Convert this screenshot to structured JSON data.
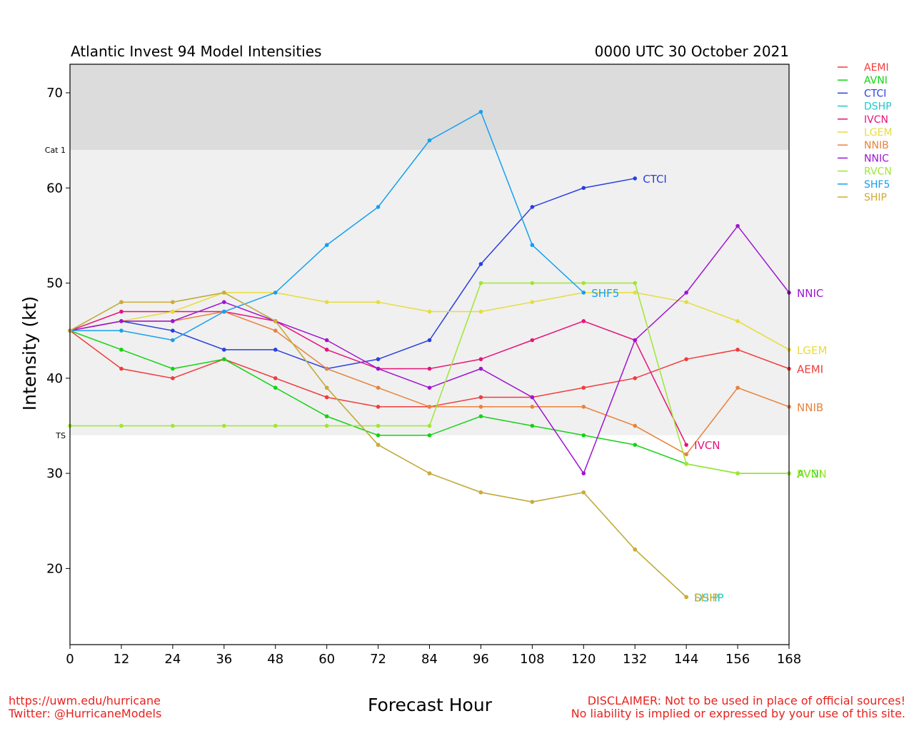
{
  "chart_data": {
    "type": "line",
    "title": "Atlantic Invest 94 Model Intensities",
    "date": "0000 UTC 30 October 2021",
    "xlabel": "Forecast Hour",
    "ylabel": "Intensity (kt)",
    "xlim": [
      0,
      168
    ],
    "ylim": [
      12,
      73
    ],
    "xticks": [
      0,
      12,
      24,
      36,
      48,
      60,
      72,
      84,
      96,
      108,
      120,
      132,
      144,
      156,
      168
    ],
    "yticks": [
      20,
      30,
      40,
      50,
      60,
      70
    ],
    "bands": [
      {
        "from": 64,
        "to": 73,
        "color": "#dcdcdc"
      },
      {
        "from": 34,
        "to": 64,
        "color": "#f0f0f0"
      }
    ],
    "thresholds": [
      {
        "value": 64,
        "label": "Cat 1"
      },
      {
        "value": 34,
        "label": "TS"
      }
    ],
    "legend_position": "right, outside",
    "series": [
      {
        "name": "AEMI",
        "color": "#f03c3c",
        "x": [
          0,
          12,
          24,
          36,
          48,
          60,
          72,
          84,
          96,
          108,
          120,
          132,
          144,
          156,
          168
        ],
        "y": [
          45,
          41,
          40,
          42,
          40,
          38,
          37,
          37,
          38,
          38,
          39,
          40,
          42,
          43,
          41
        ]
      },
      {
        "name": "AVNI",
        "color": "#14d214",
        "x": [
          0,
          12,
          24,
          36,
          48,
          60,
          72,
          84,
          96,
          108,
          120,
          132,
          144,
          156,
          168
        ],
        "y": [
          45,
          43,
          41,
          42,
          39,
          36,
          34,
          34,
          36,
          35,
          34,
          33,
          31,
          30,
          30
        ]
      },
      {
        "name": "CTCI",
        "color": "#2a3fe0",
        "x": [
          0,
          12,
          24,
          36,
          48,
          60,
          72,
          84,
          96,
          108,
          120,
          132
        ],
        "y": [
          45,
          46,
          45,
          43,
          43,
          41,
          42,
          44,
          52,
          58,
          60,
          61
        ]
      },
      {
        "name": "DSHP",
        "color": "#1ec8c8",
        "x": [
          0,
          12,
          24,
          36,
          48,
          60,
          72,
          84,
          96,
          108,
          120,
          132,
          144
        ],
        "y": [
          45,
          48,
          48,
          49,
          46,
          39,
          33,
          30,
          28,
          27,
          28,
          22,
          17
        ]
      },
      {
        "name": "IVCN",
        "color": "#e6147a",
        "x": [
          0,
          12,
          24,
          36,
          48,
          60,
          72,
          84,
          96,
          108,
          120,
          132,
          144
        ],
        "y": [
          45,
          47,
          47,
          47,
          46,
          43,
          41,
          41,
          42,
          44,
          46,
          44,
          33
        ]
      },
      {
        "name": "LGEM",
        "color": "#e6dc3c",
        "x": [
          0,
          12,
          24,
          36,
          48,
          60,
          72,
          84,
          96,
          108,
          120,
          132,
          144,
          156,
          168
        ],
        "y": [
          45,
          46,
          47,
          49,
          49,
          48,
          48,
          47,
          47,
          48,
          49,
          49,
          48,
          46,
          43
        ]
      },
      {
        "name": "NNIB",
        "color": "#e8823c",
        "x": [
          0,
          12,
          24,
          36,
          48,
          60,
          72,
          84,
          96,
          108,
          120,
          132,
          144,
          156,
          168
        ],
        "y": [
          45,
          46,
          46,
          47,
          45,
          41,
          39,
          37,
          37,
          37,
          37,
          35,
          32,
          39,
          37
        ]
      },
      {
        "name": "NNIC",
        "color": "#a014d2",
        "x": [
          0,
          12,
          24,
          36,
          48,
          60,
          72,
          84,
          96,
          108,
          120,
          132,
          144,
          156,
          168
        ],
        "y": [
          45,
          46,
          46,
          48,
          46,
          44,
          41,
          39,
          41,
          38,
          30,
          44,
          49,
          56,
          49
        ]
      },
      {
        "name": "RVCN",
        "color": "#a0e632",
        "x": [
          0,
          12,
          24,
          36,
          48,
          60,
          72,
          84,
          96,
          108,
          120,
          132,
          144,
          156,
          168
        ],
        "y": [
          35,
          35,
          35,
          35,
          35,
          35,
          35,
          35,
          50,
          50,
          50,
          50,
          31,
          30,
          30
        ]
      },
      {
        "name": "SHF5",
        "color": "#14a0f0",
        "x": [
          0,
          12,
          24,
          36,
          48,
          60,
          72,
          84,
          96,
          108,
          120
        ],
        "y": [
          45,
          45,
          44,
          47,
          49,
          54,
          58,
          65,
          68,
          54,
          49
        ]
      },
      {
        "name": "SHIP",
        "color": "#d2aa32",
        "x": [
          0,
          12,
          24,
          36,
          48,
          60,
          72,
          84,
          96,
          108,
          120,
          132,
          144
        ],
        "y": [
          45,
          48,
          48,
          49,
          46,
          39,
          33,
          30,
          28,
          27,
          28,
          22,
          17
        ]
      }
    ],
    "end_labels": [
      {
        "text": "CTCI",
        "series": "CTCI"
      },
      {
        "text": "NNIC",
        "series": "NNIC"
      },
      {
        "text": "SHF5",
        "series": "SHF5"
      },
      {
        "text": "LGEM",
        "series": "LGEM"
      },
      {
        "text": "AEMI",
        "series": "AEMI"
      },
      {
        "text": "NNIB",
        "series": "NNIB"
      },
      {
        "text": "IVCN",
        "series": "IVCN"
      },
      {
        "text": "AVNI",
        "series": "AVNI"
      },
      {
        "text": "RVCN",
        "series": "RVCN"
      },
      {
        "text": "DSHP",
        "series": "DSHP"
      },
      {
        "text": "SHIP",
        "series": "SHIP"
      }
    ]
  },
  "footer": {
    "url": "https://uwm.edu/hurricane",
    "twitter": "Twitter: @HurricaneModels",
    "disclaimer_line1": "DISCLAIMER: Not to be used in place of official sources!",
    "disclaimer_line2": "No liability is implied or expressed by your use of this site."
  }
}
